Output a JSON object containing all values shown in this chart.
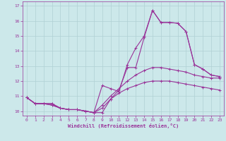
{
  "xlabel": "Windchill (Refroidissement éolien,°C)",
  "xlim": [
    -0.5,
    23.5
  ],
  "ylim": [
    9.7,
    17.3
  ],
  "yticks": [
    10,
    11,
    12,
    13,
    14,
    15,
    16,
    17
  ],
  "xticks": [
    0,
    1,
    2,
    3,
    4,
    5,
    6,
    7,
    8,
    9,
    10,
    11,
    12,
    13,
    14,
    15,
    16,
    17,
    18,
    19,
    20,
    21,
    22,
    23
  ],
  "background_color": "#cce8ea",
  "line_color": "#993399",
  "grid_color": "#b0d0d4",
  "line1": [
    10.9,
    10.5,
    10.5,
    10.5,
    10.2,
    10.1,
    10.1,
    10.0,
    9.9,
    9.9,
    10.8,
    11.4,
    12.9,
    12.9,
    14.9,
    16.7,
    15.9,
    15.9,
    15.85,
    15.3,
    13.1,
    12.8,
    12.4,
    12.3
  ],
  "line2": [
    10.9,
    10.5,
    10.5,
    10.5,
    10.2,
    10.1,
    10.1,
    10.0,
    9.9,
    11.7,
    11.5,
    11.3,
    13.1,
    14.2,
    15.0,
    16.7,
    15.9,
    15.9,
    15.85,
    15.3,
    13.1,
    12.8,
    12.4,
    12.3
  ],
  "line3": [
    10.9,
    10.5,
    10.5,
    10.4,
    10.2,
    10.1,
    10.1,
    10.0,
    9.9,
    10.4,
    11.0,
    11.5,
    12.0,
    12.4,
    12.7,
    12.9,
    12.9,
    12.8,
    12.7,
    12.6,
    12.4,
    12.3,
    12.2,
    12.2
  ],
  "line4": [
    10.9,
    10.5,
    10.5,
    10.4,
    10.2,
    10.1,
    10.1,
    10.0,
    9.9,
    10.2,
    10.8,
    11.2,
    11.5,
    11.7,
    11.9,
    12.0,
    12.0,
    12.0,
    11.9,
    11.8,
    11.7,
    11.6,
    11.5,
    11.4
  ]
}
